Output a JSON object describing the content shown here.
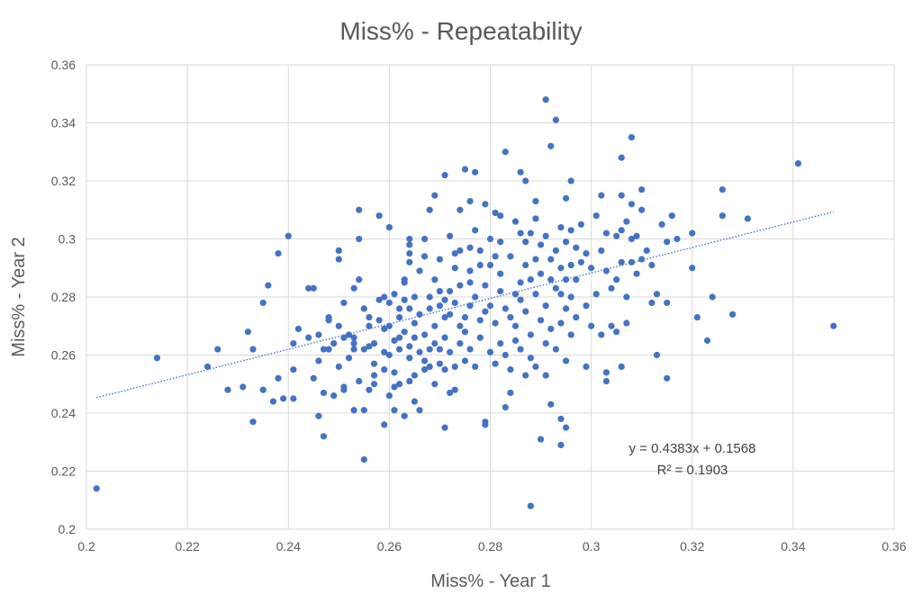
{
  "chart_data": {
    "type": "scatter",
    "title": "Miss% - Repeatability",
    "xlabel": "Miss% - Year 1",
    "ylabel": "Miss% - Year 2",
    "xlim": [
      0.2,
      0.36
    ],
    "ylim": [
      0.2,
      0.36
    ],
    "x_ticks": [
      "0.2",
      "0.22",
      "0.24",
      "0.26",
      "0.28",
      "0.3",
      "0.32",
      "0.34",
      "0.36"
    ],
    "y_ticks": [
      "0.2",
      "0.22",
      "0.24",
      "0.26",
      "0.28",
      "0.3",
      "0.32",
      "0.34",
      "0.36"
    ],
    "grid": true,
    "marker_color": "#4472C4",
    "trendline": {
      "slope": 0.4383,
      "intercept": 0.1568,
      "x_range": [
        0.202,
        0.348
      ],
      "equation": "y = 0.4383x + 0.1568",
      "r_squared": "R² = 0.1903"
    },
    "points": [
      [
        0.202,
        0.214
      ],
      [
        0.214,
        0.259
      ],
      [
        0.224,
        0.256
      ],
      [
        0.226,
        0.262
      ],
      [
        0.228,
        0.248
      ],
      [
        0.231,
        0.249
      ],
      [
        0.232,
        0.268
      ],
      [
        0.233,
        0.237
      ],
      [
        0.233,
        0.262
      ],
      [
        0.235,
        0.248
      ],
      [
        0.235,
        0.278
      ],
      [
        0.236,
        0.284
      ],
      [
        0.237,
        0.244
      ],
      [
        0.238,
        0.252
      ],
      [
        0.238,
        0.295
      ],
      [
        0.239,
        0.245
      ],
      [
        0.24,
        0.301
      ],
      [
        0.241,
        0.264
      ],
      [
        0.241,
        0.255
      ],
      [
        0.241,
        0.245
      ],
      [
        0.242,
        0.269
      ],
      [
        0.244,
        0.266
      ],
      [
        0.244,
        0.283
      ],
      [
        0.245,
        0.252
      ],
      [
        0.245,
        0.283
      ],
      [
        0.246,
        0.239
      ],
      [
        0.246,
        0.267
      ],
      [
        0.246,
        0.258
      ],
      [
        0.247,
        0.262
      ],
      [
        0.247,
        0.232
      ],
      [
        0.247,
        0.247
      ],
      [
        0.248,
        0.272
      ],
      [
        0.248,
        0.273
      ],
      [
        0.248,
        0.262
      ],
      [
        0.249,
        0.246
      ],
      [
        0.249,
        0.264
      ],
      [
        0.25,
        0.256
      ],
      [
        0.25,
        0.27
      ],
      [
        0.25,
        0.296
      ],
      [
        0.25,
        0.293
      ],
      [
        0.251,
        0.266
      ],
      [
        0.251,
        0.249
      ],
      [
        0.251,
        0.248
      ],
      [
        0.251,
        0.278
      ],
      [
        0.252,
        0.267
      ],
      [
        0.252,
        0.259
      ],
      [
        0.253,
        0.262
      ],
      [
        0.253,
        0.283
      ],
      [
        0.253,
        0.241
      ],
      [
        0.253,
        0.264
      ],
      [
        0.253,
        0.266
      ],
      [
        0.254,
        0.3
      ],
      [
        0.254,
        0.31
      ],
      [
        0.254,
        0.251
      ],
      [
        0.254,
        0.286
      ],
      [
        0.255,
        0.224
      ],
      [
        0.255,
        0.262
      ],
      [
        0.255,
        0.276
      ],
      [
        0.255,
        0.241
      ],
      [
        0.256,
        0.27
      ],
      [
        0.256,
        0.273
      ],
      [
        0.256,
        0.248
      ],
      [
        0.256,
        0.263
      ],
      [
        0.257,
        0.264
      ],
      [
        0.257,
        0.253
      ],
      [
        0.257,
        0.25
      ],
      [
        0.257,
        0.257
      ],
      [
        0.258,
        0.308
      ],
      [
        0.258,
        0.279
      ],
      [
        0.258,
        0.272
      ],
      [
        0.259,
        0.28
      ],
      [
        0.259,
        0.236
      ],
      [
        0.259,
        0.255
      ],
      [
        0.259,
        0.269
      ],
      [
        0.259,
        0.261
      ],
      [
        0.26,
        0.246
      ],
      [
        0.26,
        0.26
      ],
      [
        0.26,
        0.27
      ],
      [
        0.26,
        0.304
      ],
      [
        0.26,
        0.278
      ],
      [
        0.261,
        0.281
      ],
      [
        0.261,
        0.265
      ],
      [
        0.261,
        0.249
      ],
      [
        0.261,
        0.241
      ],
      [
        0.261,
        0.254
      ],
      [
        0.262,
        0.266
      ],
      [
        0.262,
        0.273
      ],
      [
        0.262,
        0.276
      ],
      [
        0.262,
        0.262
      ],
      [
        0.262,
        0.25
      ],
      [
        0.263,
        0.285
      ],
      [
        0.263,
        0.239
      ],
      [
        0.263,
        0.268
      ],
      [
        0.263,
        0.279
      ],
      [
        0.263,
        0.286
      ],
      [
        0.264,
        0.263
      ],
      [
        0.264,
        0.276
      ],
      [
        0.264,
        0.292
      ],
      [
        0.264,
        0.251
      ],
      [
        0.264,
        0.259
      ],
      [
        0.264,
        0.3
      ],
      [
        0.264,
        0.295
      ],
      [
        0.264,
        0.298
      ],
      [
        0.265,
        0.244
      ],
      [
        0.265,
        0.271
      ],
      [
        0.265,
        0.253
      ],
      [
        0.265,
        0.28
      ],
      [
        0.265,
        0.266
      ],
      [
        0.266,
        0.241
      ],
      [
        0.266,
        0.261
      ],
      [
        0.266,
        0.274
      ],
      [
        0.266,
        0.289
      ],
      [
        0.267,
        0.294
      ],
      [
        0.267,
        0.255
      ],
      [
        0.267,
        0.3
      ],
      [
        0.267,
        0.267
      ],
      [
        0.267,
        0.258
      ],
      [
        0.268,
        0.262
      ],
      [
        0.268,
        0.28
      ],
      [
        0.268,
        0.31
      ],
      [
        0.268,
        0.256
      ],
      [
        0.268,
        0.276
      ],
      [
        0.269,
        0.315
      ],
      [
        0.269,
        0.27
      ],
      [
        0.269,
        0.264
      ],
      [
        0.269,
        0.25
      ],
      [
        0.269,
        0.286
      ],
      [
        0.27,
        0.282
      ],
      [
        0.27,
        0.257
      ],
      [
        0.27,
        0.277
      ],
      [
        0.27,
        0.262
      ],
      [
        0.27,
        0.293
      ],
      [
        0.271,
        0.273
      ],
      [
        0.271,
        0.279
      ],
      [
        0.271,
        0.235
      ],
      [
        0.271,
        0.322
      ],
      [
        0.271,
        0.255
      ],
      [
        0.271,
        0.266
      ],
      [
        0.272,
        0.301
      ],
      [
        0.272,
        0.274
      ],
      [
        0.272,
        0.261
      ],
      [
        0.272,
        0.282
      ],
      [
        0.272,
        0.247
      ],
      [
        0.273,
        0.29
      ],
      [
        0.273,
        0.295
      ],
      [
        0.273,
        0.248
      ],
      [
        0.273,
        0.256
      ],
      [
        0.273,
        0.278
      ],
      [
        0.274,
        0.27
      ],
      [
        0.274,
        0.296
      ],
      [
        0.274,
        0.31
      ],
      [
        0.274,
        0.264
      ],
      [
        0.274,
        0.284
      ],
      [
        0.275,
        0.324
      ],
      [
        0.275,
        0.258
      ],
      [
        0.275,
        0.268
      ],
      [
        0.275,
        0.273
      ],
      [
        0.276,
        0.297
      ],
      [
        0.276,
        0.285
      ],
      [
        0.276,
        0.313
      ],
      [
        0.276,
        0.289
      ],
      [
        0.276,
        0.277
      ],
      [
        0.276,
        0.262
      ],
      [
        0.277,
        0.303
      ],
      [
        0.277,
        0.323
      ],
      [
        0.277,
        0.28
      ],
      [
        0.277,
        0.256
      ],
      [
        0.278,
        0.272
      ],
      [
        0.278,
        0.266
      ],
      [
        0.278,
        0.296
      ],
      [
        0.278,
        0.291
      ],
      [
        0.279,
        0.237
      ],
      [
        0.279,
        0.236
      ],
      [
        0.279,
        0.275
      ],
      [
        0.279,
        0.284
      ],
      [
        0.279,
        0.312
      ],
      [
        0.28,
        0.277
      ],
      [
        0.28,
        0.261
      ],
      [
        0.28,
        0.291
      ],
      [
        0.28,
        0.3
      ],
      [
        0.281,
        0.294
      ],
      [
        0.281,
        0.309
      ],
      [
        0.281,
        0.257
      ],
      [
        0.281,
        0.271
      ],
      [
        0.282,
        0.299
      ],
      [
        0.282,
        0.264
      ],
      [
        0.282,
        0.282
      ],
      [
        0.282,
        0.288
      ],
      [
        0.282,
        0.308
      ],
      [
        0.283,
        0.26
      ],
      [
        0.283,
        0.276
      ],
      [
        0.283,
        0.242
      ],
      [
        0.283,
        0.33
      ],
      [
        0.284,
        0.247
      ],
      [
        0.284,
        0.255
      ],
      [
        0.284,
        0.273
      ],
      [
        0.284,
        0.294
      ],
      [
        0.285,
        0.306
      ],
      [
        0.285,
        0.281
      ],
      [
        0.285,
        0.265
      ],
      [
        0.285,
        0.27
      ],
      [
        0.286,
        0.323
      ],
      [
        0.286,
        0.302
      ],
      [
        0.286,
        0.285
      ],
      [
        0.286,
        0.262
      ],
      [
        0.286,
        0.279
      ],
      [
        0.287,
        0.32
      ],
      [
        0.287,
        0.291
      ],
      [
        0.287,
        0.253
      ],
      [
        0.287,
        0.299
      ],
      [
        0.287,
        0.275
      ],
      [
        0.288,
        0.286
      ],
      [
        0.288,
        0.302
      ],
      [
        0.288,
        0.267
      ],
      [
        0.288,
        0.208
      ],
      [
        0.288,
        0.259
      ],
      [
        0.289,
        0.313
      ],
      [
        0.289,
        0.293
      ],
      [
        0.289,
        0.281
      ],
      [
        0.289,
        0.307
      ],
      [
        0.289,
        0.256
      ],
      [
        0.29,
        0.231
      ],
      [
        0.29,
        0.298
      ],
      [
        0.29,
        0.272
      ],
      [
        0.29,
        0.288
      ],
      [
        0.291,
        0.348
      ],
      [
        0.291,
        0.301
      ],
      [
        0.291,
        0.277
      ],
      [
        0.291,
        0.264
      ],
      [
        0.291,
        0.253
      ],
      [
        0.292,
        0.332
      ],
      [
        0.292,
        0.286
      ],
      [
        0.292,
        0.293
      ],
      [
        0.292,
        0.269
      ],
      [
        0.292,
        0.243
      ],
      [
        0.293,
        0.341
      ],
      [
        0.293,
        0.296
      ],
      [
        0.293,
        0.283
      ],
      [
        0.293,
        0.262
      ],
      [
        0.294,
        0.238
      ],
      [
        0.294,
        0.304
      ],
      [
        0.294,
        0.29
      ],
      [
        0.294,
        0.271
      ],
      [
        0.294,
        0.281
      ],
      [
        0.294,
        0.229
      ],
      [
        0.295,
        0.314
      ],
      [
        0.295,
        0.299
      ],
      [
        0.295,
        0.286
      ],
      [
        0.295,
        0.276
      ],
      [
        0.295,
        0.258
      ],
      [
        0.295,
        0.235
      ],
      [
        0.296,
        0.32
      ],
      [
        0.296,
        0.303
      ],
      [
        0.296,
        0.291
      ],
      [
        0.296,
        0.28
      ],
      [
        0.296,
        0.267
      ],
      [
        0.297,
        0.297
      ],
      [
        0.297,
        0.286
      ],
      [
        0.297,
        0.273
      ],
      [
        0.298,
        0.305
      ],
      [
        0.298,
        0.292
      ],
      [
        0.299,
        0.256
      ],
      [
        0.299,
        0.277
      ],
      [
        0.299,
        0.295
      ],
      [
        0.3,
        0.29
      ],
      [
        0.3,
        0.27
      ],
      [
        0.301,
        0.281
      ],
      [
        0.301,
        0.308
      ],
      [
        0.302,
        0.267
      ],
      [
        0.302,
        0.296
      ],
      [
        0.302,
        0.315
      ],
      [
        0.303,
        0.254
      ],
      [
        0.303,
        0.289
      ],
      [
        0.303,
        0.302
      ],
      [
        0.303,
        0.251
      ],
      [
        0.304,
        0.283
      ],
      [
        0.304,
        0.27
      ],
      [
        0.305,
        0.268
      ],
      [
        0.305,
        0.301
      ],
      [
        0.305,
        0.286
      ],
      [
        0.306,
        0.303
      ],
      [
        0.306,
        0.328
      ],
      [
        0.306,
        0.292
      ],
      [
        0.306,
        0.256
      ],
      [
        0.306,
        0.315
      ],
      [
        0.307,
        0.271
      ],
      [
        0.307,
        0.306
      ],
      [
        0.307,
        0.28
      ],
      [
        0.308,
        0.292
      ],
      [
        0.308,
        0.312
      ],
      [
        0.308,
        0.335
      ],
      [
        0.308,
        0.3
      ],
      [
        0.309,
        0.288
      ],
      [
        0.309,
        0.301
      ],
      [
        0.31,
        0.31
      ],
      [
        0.31,
        0.317
      ],
      [
        0.31,
        0.293
      ],
      [
        0.311,
        0.296
      ],
      [
        0.312,
        0.291
      ],
      [
        0.312,
        0.278
      ],
      [
        0.313,
        0.26
      ],
      [
        0.313,
        0.281
      ],
      [
        0.314,
        0.305
      ],
      [
        0.315,
        0.252
      ],
      [
        0.315,
        0.299
      ],
      [
        0.315,
        0.278
      ],
      [
        0.316,
        0.308
      ],
      [
        0.317,
        0.3
      ],
      [
        0.32,
        0.302
      ],
      [
        0.32,
        0.29
      ],
      [
        0.321,
        0.273
      ],
      [
        0.323,
        0.265
      ],
      [
        0.324,
        0.28
      ],
      [
        0.326,
        0.317
      ],
      [
        0.326,
        0.308
      ],
      [
        0.328,
        0.274
      ],
      [
        0.331,
        0.307
      ],
      [
        0.341,
        0.326
      ],
      [
        0.348,
        0.27
      ]
    ]
  }
}
